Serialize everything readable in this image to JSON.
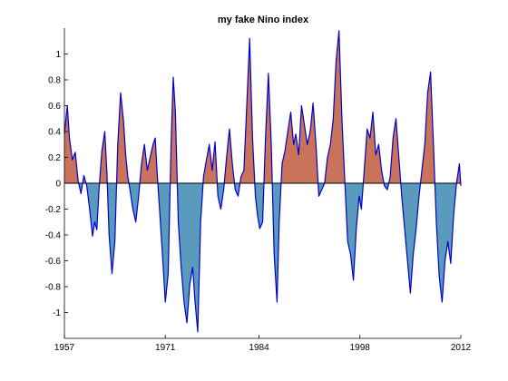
{
  "chart_data": {
    "type": "area",
    "title": "my fake Nino index",
    "xlabel": "",
    "ylabel": "",
    "xlim": [
      1957,
      2012
    ],
    "ylim": [
      -1.2,
      1.2
    ],
    "x_ticks": [
      1957,
      1971,
      1984,
      1998,
      2012
    ],
    "x_tick_labels": [
      "1957",
      "1971",
      "1984",
      "1998",
      "2012"
    ],
    "y_ticks": [
      -1,
      -0.8,
      -0.6,
      -0.4,
      -0.2,
      0,
      0.2,
      0.4,
      0.6,
      0.8,
      1
    ],
    "y_tick_labels": [
      "-1",
      "-0.8",
      "-0.6",
      "-0.4",
      "-0.2",
      "0",
      "0.2",
      "0.4",
      "0.6",
      "0.8",
      "1"
    ],
    "grid": false,
    "colors": {
      "positive_fill": "#c8735a",
      "negative_fill": "#5a9bbd",
      "line": "#0000cc",
      "zero_line": "#000000"
    },
    "series": [
      {
        "x": [
          1957.0,
          1957.4,
          1957.7,
          1958.1,
          1958.5,
          1958.9,
          1959.3,
          1959.7,
          1960.1,
          1960.5,
          1960.9,
          1961.2,
          1961.5,
          1961.8,
          1962.2,
          1962.6,
          1962.9,
          1963.2,
          1963.6,
          1964.0,
          1964.4,
          1964.8,
          1965.2,
          1965.5,
          1965.8,
          1966.1,
          1966.5,
          1966.9,
          1967.3,
          1967.7,
          1968.1,
          1968.5,
          1968.9,
          1969.3,
          1969.6,
          1969.9,
          1970.2,
          1970.6,
          1971.0,
          1971.4,
          1971.8,
          1972.1,
          1972.4,
          1972.8,
          1973.2,
          1973.6,
          1974.0,
          1974.4,
          1974.8,
          1975.1,
          1975.5,
          1975.9,
          1976.3,
          1976.7,
          1977.1,
          1977.5,
          1977.9,
          1978.3,
          1978.7,
          1979.1,
          1979.5,
          1979.9,
          1980.3,
          1980.7,
          1981.1,
          1981.5,
          1981.9,
          1982.3,
          1982.7,
          1983.1,
          1983.5,
          1983.8,
          1984.1,
          1984.5,
          1984.9,
          1985.3,
          1985.7,
          1986.1,
          1986.5,
          1986.8,
          1987.2,
          1987.6,
          1988.0,
          1988.4,
          1988.8,
          1989.1,
          1989.5,
          1989.9,
          1990.3,
          1990.7,
          1991.1,
          1991.5,
          1991.9,
          1992.3,
          1992.7,
          1993.1,
          1993.5,
          1993.9,
          1994.3,
          1994.7,
          1995.1,
          1995.5,
          1995.9,
          1996.3,
          1996.7,
          1997.1,
          1997.5,
          1997.9,
          1998.2,
          1998.6,
          1999.0,
          1999.4,
          1999.8,
          2000.2,
          2000.6,
          2001.0,
          2001.4,
          2001.8,
          2002.2,
          2002.6,
          2003.0,
          2003.4,
          2003.8,
          2004.2,
          2004.6,
          2005.0,
          2005.4,
          2005.8,
          2006.2,
          2006.6,
          2007.0,
          2007.4,
          2007.8,
          2008.2,
          2008.6,
          2009.0,
          2009.4,
          2009.8,
          2010.2,
          2010.6,
          2011.0,
          2011.4,
          2011.8,
          2012.0
        ],
        "y": [
          0.38,
          0.6,
          0.35,
          0.18,
          0.24,
          0.02,
          -0.08,
          0.06,
          -0.02,
          -0.2,
          -0.41,
          -0.3,
          -0.36,
          -0.05,
          0.25,
          0.4,
          0.08,
          -0.4,
          -0.7,
          -0.45,
          0.3,
          0.7,
          0.48,
          0.22,
          0.05,
          -0.05,
          -0.2,
          -0.3,
          -0.1,
          0.15,
          0.3,
          0.1,
          0.2,
          0.3,
          0.35,
          0.05,
          -0.2,
          -0.55,
          -0.92,
          -0.7,
          0.3,
          0.82,
          0.55,
          -0.3,
          -0.65,
          -0.92,
          -1.08,
          -0.78,
          -0.65,
          -0.9,
          -1.15,
          -0.3,
          0.05,
          0.18,
          0.3,
          0.1,
          0.32,
          -0.1,
          -0.2,
          -0.05,
          0.2,
          0.42,
          0.15,
          -0.05,
          -0.1,
          0.05,
          0.1,
          0.6,
          1.12,
          0.35,
          -0.1,
          -0.25,
          -0.35,
          -0.3,
          0.35,
          0.85,
          0.3,
          -0.55,
          -0.92,
          -0.3,
          0.15,
          0.25,
          0.4,
          0.55,
          0.3,
          0.38,
          0.22,
          0.6,
          0.45,
          0.3,
          0.4,
          0.62,
          0.3,
          -0.1,
          -0.05,
          0.0,
          0.2,
          0.3,
          0.5,
          0.95,
          1.18,
          0.5,
          0.02,
          -0.45,
          -0.55,
          -0.75,
          -0.35,
          -0.1,
          -0.2,
          0.1,
          0.42,
          0.35,
          0.55,
          0.22,
          0.3,
          0.1,
          -0.02,
          -0.05,
          0.05,
          0.35,
          0.5,
          0.2,
          -0.1,
          -0.35,
          -0.6,
          -0.85,
          -0.55,
          -0.35,
          -0.1,
          0.1,
          0.3,
          0.7,
          0.86,
          0.3,
          -0.3,
          -0.72,
          -0.92,
          -0.6,
          -0.45,
          -0.62,
          -0.25,
          0.0,
          0.15,
          -0.02
        ]
      }
    ]
  }
}
